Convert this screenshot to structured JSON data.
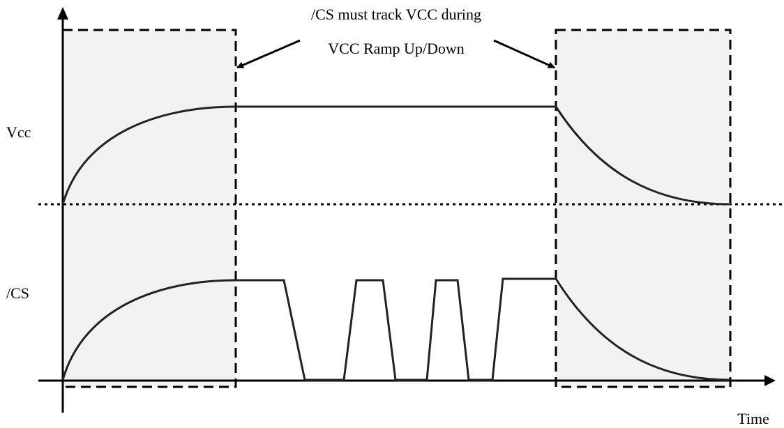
{
  "annotation": {
    "line1": "/CS must track VCC during",
    "line2": "VCC Ramp Up/Down"
  },
  "signals": {
    "vcc_label": "Vcc",
    "cs_label": "/CS"
  },
  "axis": {
    "x_label": "Time"
  },
  "colors": {
    "ramp_zone_fill": "#f2f2f2",
    "stroke": "#000000",
    "waveform": "#222222"
  }
}
